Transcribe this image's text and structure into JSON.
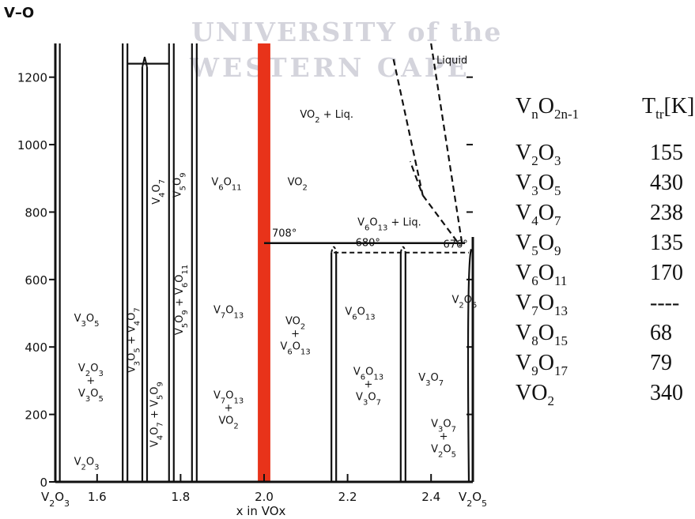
{
  "figure_label": "V–O",
  "watermark": {
    "line1": "UNIVERSITY of the",
    "line2": "WESTERN CAPE"
  },
  "chart_data": {
    "type": "phase-diagram",
    "xlabel": "x in VOx",
    "xlim": [
      1.5,
      2.5
    ],
    "ylim": [
      0,
      1300
    ],
    "x_ticks": [
      {
        "value": 1.5,
        "label": "V2O3"
      },
      {
        "value": 1.6,
        "label": "1.6"
      },
      {
        "value": 1.8,
        "label": "1.8"
      },
      {
        "value": 2.0,
        "label": "2.0"
      },
      {
        "value": 2.2,
        "label": "2.2"
      },
      {
        "value": 2.4,
        "label": "2.4"
      },
      {
        "value": 2.5,
        "label": "V2O5"
      }
    ],
    "y_ticks": [
      {
        "value": 0,
        "label": "0"
      },
      {
        "value": 200,
        "label": "200"
      },
      {
        "value": 400,
        "label": "400"
      },
      {
        "value": 600,
        "label": "600"
      },
      {
        "value": 800,
        "label": "800"
      },
      {
        "value": 1000,
        "label": "1000"
      },
      {
        "value": 1200,
        "label": "1200"
      }
    ],
    "highlight_band": {
      "x_from": 1.985,
      "x_to": 2.015,
      "color": "#e8331a"
    },
    "phase_lines": [
      1.505,
      1.667,
      1.714,
      1.778,
      1.833,
      2.0,
      2.167,
      2.333,
      2.5
    ],
    "temperatures": [
      {
        "label": "708°",
        "x": 2.0,
        "y": 708
      },
      {
        "label": "680°",
        "x": 2.2,
        "y": 680
      },
      {
        "label": "676°",
        "x": 2.41,
        "y": 676
      }
    ],
    "region_labels": [
      {
        "text": "Liquid",
        "x": 2.45,
        "y": 1240
      },
      {
        "text": "VO2 + Liq.",
        "x": 2.15,
        "y": 1080
      },
      {
        "text": "V6O13 + Liq.",
        "x": 2.3,
        "y": 760
      },
      {
        "text": "VO2",
        "x": 2.08,
        "y": 880
      },
      {
        "text": "V6O11",
        "x": 1.91,
        "y": 880
      },
      {
        "text": "V5O9",
        "x": 1.8,
        "y": 880
      },
      {
        "text": "V4O7",
        "x": 1.75,
        "y": 860
      },
      {
        "text": "V5O9 + V6O11",
        "x": 1.805,
        "y": 540
      },
      {
        "text": "V3O5 + V4O7",
        "x": 1.69,
        "y": 420
      },
      {
        "text": "V4O7 + V5O9",
        "x": 1.745,
        "y": 200
      },
      {
        "text": "V3O5",
        "x": 1.575,
        "y": 475
      },
      {
        "text": "V2O3 + V3O5",
        "x": 1.585,
        "y": 290
      },
      {
        "text": "V2O3",
        "x": 1.575,
        "y": 50
      },
      {
        "text": "V7O13",
        "x": 1.915,
        "y": 500
      },
      {
        "text": "V7O13 + VO2",
        "x": 1.915,
        "y": 210
      },
      {
        "text": "VO2 + V6O13",
        "x": 2.075,
        "y": 430
      },
      {
        "text": "V6O13",
        "x": 2.23,
        "y": 495
      },
      {
        "text": "V6O13 + V3O7",
        "x": 2.25,
        "y": 280
      },
      {
        "text": "V3O7",
        "x": 2.4,
        "y": 300
      },
      {
        "text": "V3O7 + V2O5",
        "x": 2.43,
        "y": 125
      },
      {
        "text": "V2O5",
        "x": 2.48,
        "y": 530
      }
    ]
  },
  "table": {
    "header": {
      "formula": "VnO2n-1",
      "value": "Ttr[K]"
    },
    "rows": [
      {
        "formula": "V2O3",
        "value": "155"
      },
      {
        "formula": "V3O5",
        "value": "430"
      },
      {
        "formula": "V4O7",
        "value": "238"
      },
      {
        "formula": "V5O9",
        "value": "135"
      },
      {
        "formula": "V6O11",
        "value": "170"
      },
      {
        "formula": "V7O13",
        "value": "----"
      },
      {
        "formula": "V8O15",
        "value": "68"
      },
      {
        "formula": "V9O17",
        "value": "79"
      },
      {
        "formula": "VO2",
        "value": "340"
      }
    ]
  }
}
